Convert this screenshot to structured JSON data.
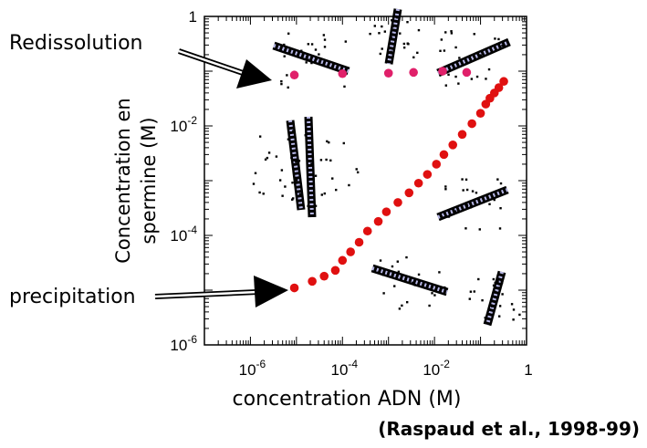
{
  "chart_data": {
    "type": "scatter",
    "xscale": "log",
    "yscale": "log",
    "xlim": [
      1e-07,
      1
    ],
    "ylim": [
      1e-06,
      1
    ],
    "x_ticks": [
      {
        "value": 1e-06,
        "base": "10",
        "exp": "-6"
      },
      {
        "value": 0.0001,
        "base": "10",
        "exp": "-4"
      },
      {
        "value": 0.01,
        "base": "10",
        "exp": "-2"
      },
      {
        "value": 1,
        "base": "1",
        "exp": ""
      }
    ],
    "y_ticks": [
      {
        "value": 1e-06,
        "base": "10",
        "exp": "-6"
      },
      {
        "value": 0.0001,
        "base": "10",
        "exp": "-4"
      },
      {
        "value": 0.01,
        "base": "10",
        "exp": "-2"
      },
      {
        "value": 1,
        "base": "1",
        "exp": ""
      }
    ],
    "xlabel": "concentration ADN (M)",
    "ylabel_line1": "Concentration en",
    "ylabel_line2": "spermine (M)",
    "series": [
      {
        "name": "Redissolution",
        "color": "#e0206a",
        "x": [
          9e-06,
          0.0001,
          0.001,
          0.0035,
          0.015,
          0.05
        ],
        "y": [
          0.085,
          0.09,
          0.092,
          0.095,
          0.1,
          0.095
        ]
      },
      {
        "name": "precipitation",
        "color": "#e01010",
        "x": [
          9e-06,
          2.2e-05,
          4e-05,
          7e-05,
          0.0001,
          0.00015,
          0.00023,
          0.00035,
          0.0006,
          0.0009,
          0.0016,
          0.0028,
          0.0045,
          0.007,
          0.011,
          0.016,
          0.025,
          0.04,
          0.065,
          0.1,
          0.13,
          0.16,
          0.2,
          0.25,
          0.32
        ],
        "y": [
          1.1e-05,
          1.45e-05,
          1.8e-05,
          2.3e-05,
          3.5e-05,
          5e-05,
          7.5e-05,
          0.00012,
          0.00018,
          0.00027,
          0.0004,
          0.0006,
          0.0009,
          0.0013,
          0.002,
          0.003,
          0.0045,
          0.007,
          0.011,
          0.017,
          0.025,
          0.032,
          0.04,
          0.05,
          0.065
        ]
      }
    ]
  },
  "annotations": {
    "redissolution": "Redissolution",
    "precipitation": "precipitation",
    "citation": "(Raspaud et al., 1998-99)"
  }
}
